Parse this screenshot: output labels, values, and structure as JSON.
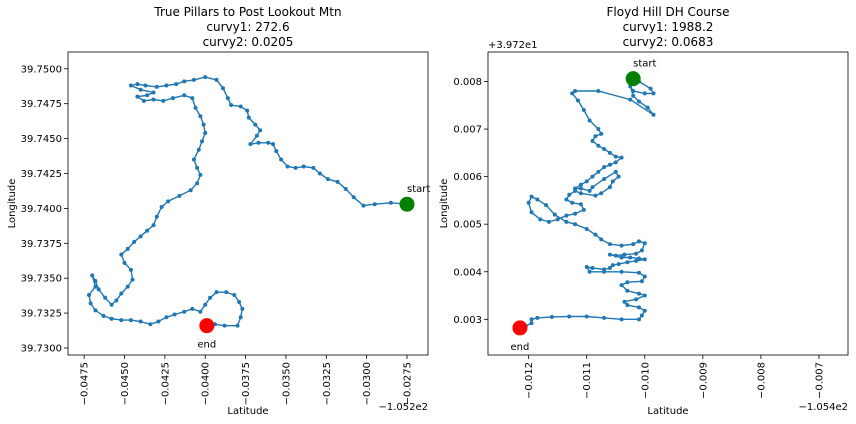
{
  "chart_data": [
    {
      "type": "scatter",
      "title": [
        "True Pillars to Post Lookout Mtn",
        "curvy1: 272.6",
        "curvy2: 0.0205"
      ],
      "xlabel": "Latitude",
      "ylabel": "Longitude",
      "x_offset_label": "−1.052e2",
      "y_offset_label": "",
      "xlim": [
        -0.0485,
        -0.0262
      ],
      "ylim": [
        39.7295,
        39.7512
      ],
      "xticks": [
        -0.0475,
        -0.045,
        -0.0425,
        -0.04,
        -0.0375,
        -0.035,
        -0.0325,
        -0.03,
        -0.0275
      ],
      "xtick_labels": [
        "−0.0475",
        "−0.0450",
        "−0.0425",
        "−0.0400",
        "−0.0375",
        "−0.0350",
        "−0.0325",
        "−0.0300",
        "−0.0275"
      ],
      "yticks": [
        39.73,
        39.7325,
        39.735,
        39.7375,
        39.74,
        39.7425,
        39.745,
        39.7475,
        39.75
      ],
      "ytick_labels": [
        "39.7300",
        "39.7325",
        "39.7350",
        "39.7375",
        "39.7400",
        "39.7425",
        "39.7450",
        "39.7475",
        "39.7500"
      ],
      "series_color": "#1f77b4",
      "start": {
        "x": -0.0275,
        "y": 39.7403,
        "label": "start",
        "color": "#008000"
      },
      "end": {
        "x": -0.0399,
        "y": 39.7316,
        "label": "end",
        "color": "#ff0000"
      },
      "points": [
        [
          -0.0275,
          39.7403
        ],
        [
          -0.0285,
          39.7404
        ],
        [
          -0.0295,
          39.7403
        ],
        [
          -0.0302,
          39.7402
        ],
        [
          -0.0308,
          39.7408
        ],
        [
          -0.0313,
          39.7414
        ],
        [
          -0.0318,
          39.7419
        ],
        [
          -0.0324,
          39.7421
        ],
        [
          -0.0329,
          39.7425
        ],
        [
          -0.0333,
          39.7429
        ],
        [
          -0.0339,
          39.743
        ],
        [
          -0.0344,
          39.7429
        ],
        [
          -0.0349,
          39.743
        ],
        [
          -0.0353,
          39.7435
        ],
        [
          -0.0356,
          39.7441
        ],
        [
          -0.0358,
          39.7446
        ],
        [
          -0.0361,
          39.7447
        ],
        [
          -0.0367,
          39.7447
        ],
        [
          -0.0372,
          39.7446
        ],
        [
          -0.0368,
          39.7452
        ],
        [
          -0.0366,
          39.7456
        ],
        [
          -0.0369,
          39.746
        ],
        [
          -0.0373,
          39.7465
        ],
        [
          -0.0374,
          39.747
        ],
        [
          -0.0378,
          39.7473
        ],
        [
          -0.0384,
          39.7474
        ],
        [
          -0.0386,
          39.7479
        ],
        [
          -0.0389,
          39.7486
        ],
        [
          -0.0393,
          39.7492
        ],
        [
          -0.04,
          39.7494
        ],
        [
          -0.0407,
          39.7492
        ],
        [
          -0.0413,
          39.7491
        ],
        [
          -0.0418,
          39.7489
        ],
        [
          -0.0424,
          39.7488
        ],
        [
          -0.043,
          39.7487
        ],
        [
          -0.0437,
          39.7488
        ],
        [
          -0.0442,
          39.7489
        ],
        [
          -0.0446,
          39.7488
        ],
        [
          -0.044,
          39.7485
        ],
        [
          -0.0432,
          39.7483
        ],
        [
          -0.0436,
          39.7481
        ],
        [
          -0.0442,
          39.748
        ],
        [
          -0.0438,
          39.7477
        ],
        [
          -0.0432,
          39.7478
        ],
        [
          -0.0426,
          39.7477
        ],
        [
          -0.042,
          39.7479
        ],
        [
          -0.0413,
          39.7481
        ],
        [
          -0.0408,
          39.7479
        ],
        [
          -0.0406,
          39.7472
        ],
        [
          -0.0403,
          39.7466
        ],
        [
          -0.0401,
          39.746
        ],
        [
          -0.04,
          39.7454
        ],
        [
          -0.0402,
          39.7448
        ],
        [
          -0.0404,
          39.7442
        ],
        [
          -0.0407,
          39.7435
        ],
        [
          -0.0405,
          39.7429
        ],
        [
          -0.0403,
          39.7424
        ],
        [
          -0.0405,
          39.7418
        ],
        [
          -0.0409,
          39.7413
        ],
        [
          -0.0416,
          39.7409
        ],
        [
          -0.0423,
          39.7405
        ],
        [
          -0.0427,
          39.7401
        ],
        [
          -0.043,
          39.7394
        ],
        [
          -0.0432,
          39.7388
        ],
        [
          -0.0436,
          39.7384
        ],
        [
          -0.044,
          39.738
        ],
        [
          -0.0444,
          39.7376
        ],
        [
          -0.0448,
          39.7371
        ],
        [
          -0.0452,
          39.7367
        ],
        [
          -0.045,
          39.7361
        ],
        [
          -0.0446,
          39.7356
        ],
        [
          -0.0445,
          39.7349
        ],
        [
          -0.0448,
          39.7344
        ],
        [
          -0.0452,
          39.7339
        ],
        [
          -0.0455,
          39.7334
        ],
        [
          -0.0458,
          39.7331
        ],
        [
          -0.0462,
          39.7336
        ],
        [
          -0.0466,
          39.7342
        ],
        [
          -0.0468,
          39.7348
        ],
        [
          -0.047,
          39.7352
        ],
        [
          -0.0468,
          39.7344
        ],
        [
          -0.0472,
          39.7338
        ],
        [
          -0.0471,
          39.7332
        ],
        [
          -0.0468,
          39.7327
        ],
        [
          -0.0463,
          39.7323
        ],
        [
          -0.0458,
          39.7321
        ],
        [
          -0.0452,
          39.732
        ],
        [
          -0.0446,
          39.732
        ],
        [
          -0.044,
          39.7319
        ],
        [
          -0.0434,
          39.7317
        ],
        [
          -0.0429,
          39.7319
        ],
        [
          -0.0424,
          39.7322
        ],
        [
          -0.0419,
          39.7324
        ],
        [
          -0.0413,
          39.7326
        ],
        [
          -0.0408,
          39.7328
        ],
        [
          -0.0403,
          39.7326
        ],
        [
          -0.04,
          39.7331
        ],
        [
          -0.0397,
          39.7336
        ],
        [
          -0.0393,
          39.734
        ],
        [
          -0.0387,
          39.734
        ],
        [
          -0.0382,
          39.7338
        ],
        [
          -0.0379,
          39.7333
        ],
        [
          -0.0377,
          39.7328
        ],
        [
          -0.0378,
          39.7322
        ],
        [
          -0.038,
          39.7316
        ],
        [
          -0.0388,
          39.7316
        ],
        [
          -0.0394,
          39.7317
        ],
        [
          -0.0399,
          39.7316
        ]
      ]
    },
    {
      "type": "scatter",
      "title": [
        "Floyd Hill DH Course",
        "curvy1: 1988.2",
        "curvy2: 0.0683"
      ],
      "xlabel": "Latitude",
      "ylabel": "Longitude",
      "x_offset_label": "−1.054e2",
      "y_offset_label": "+3.972e1",
      "xlim": [
        -0.0127,
        -0.0065
      ],
      "ylim": [
        0.00225,
        0.00862
      ],
      "xticks": [
        -0.012,
        -0.011,
        -0.01,
        -0.009,
        -0.008,
        -0.007
      ],
      "xtick_labels": [
        "−0.012",
        "−0.011",
        "−0.010",
        "−0.009",
        "−0.008",
        "−0.007"
      ],
      "yticks": [
        0.003,
        0.004,
        0.005,
        0.006,
        0.007,
        0.008
      ],
      "ytick_labels": [
        "0.003",
        "0.004",
        "0.005",
        "0.006",
        "0.007",
        "0.008"
      ],
      "series_color": "#1f77b4",
      "start": {
        "x": -0.0102,
        "y": 0.00806,
        "label": "start",
        "color": "#008000"
      },
      "end": {
        "x": -0.01215,
        "y": 0.00282,
        "label": "end",
        "color": "#ff0000"
      },
      "points": [
        [
          -0.0102,
          0.00806
        ],
        [
          -0.0101,
          0.008
        ],
        [
          -0.0099,
          0.00785
        ],
        [
          -0.00985,
          0.00775
        ],
        [
          -0.01,
          0.00775
        ],
        [
          -0.0102,
          0.0078
        ],
        [
          -0.01025,
          0.0079
        ],
        [
          -0.0102,
          0.0077
        ],
        [
          -0.0101,
          0.00758
        ],
        [
          -0.00995,
          0.00745
        ],
        [
          -0.00985,
          0.0073
        ],
        [
          -0.01025,
          0.00762
        ],
        [
          -0.0108,
          0.0078
        ],
        [
          -0.0112,
          0.0078
        ],
        [
          -0.01125,
          0.00775
        ],
        [
          -0.01115,
          0.0076
        ],
        [
          -0.01105,
          0.0074
        ],
        [
          -0.01095,
          0.00718
        ],
        [
          -0.0108,
          0.007
        ],
        [
          -0.01075,
          0.0069
        ],
        [
          -0.01085,
          0.00685
        ],
        [
          -0.0109,
          0.00675
        ],
        [
          -0.0108,
          0.00665
        ],
        [
          -0.0107,
          0.00658
        ],
        [
          -0.0106,
          0.0065
        ],
        [
          -0.0105,
          0.00642
        ],
        [
          -0.0104,
          0.0064
        ],
        [
          -0.0105,
          0.0063
        ],
        [
          -0.0106,
          0.00625
        ],
        [
          -0.0107,
          0.0062
        ],
        [
          -0.0108,
          0.0061
        ],
        [
          -0.0109,
          0.006
        ],
        [
          -0.011,
          0.0059
        ],
        [
          -0.0111,
          0.00583
        ],
        [
          -0.0112,
          0.00575
        ],
        [
          -0.0111,
          0.00575
        ],
        [
          -0.01095,
          0.0057
        ],
        [
          -0.0109,
          0.00578
        ],
        [
          -0.0107,
          0.00595
        ],
        [
          -0.0105,
          0.0061
        ],
        [
          -0.01045,
          0.006
        ],
        [
          -0.01055,
          0.0059
        ],
        [
          -0.0106,
          0.00578
        ],
        [
          -0.01075,
          0.00565
        ],
        [
          -0.01085,
          0.0056
        ],
        [
          -0.0111,
          0.00565
        ],
        [
          -0.0112,
          0.0057
        ],
        [
          -0.0113,
          0.00562
        ],
        [
          -0.01135,
          0.00552
        ],
        [
          -0.01125,
          0.00545
        ],
        [
          -0.0111,
          0.00542
        ],
        [
          -0.01105,
          0.0053
        ],
        [
          -0.0112,
          0.00522
        ],
        [
          -0.01135,
          0.00518
        ],
        [
          -0.0115,
          0.0051
        ],
        [
          -0.01165,
          0.00505
        ],
        [
          -0.0118,
          0.0051
        ],
        [
          -0.01195,
          0.00525
        ],
        [
          -0.012,
          0.00545
        ],
        [
          -0.01195,
          0.00558
        ],
        [
          -0.01185,
          0.00552
        ],
        [
          -0.0117,
          0.0054
        ],
        [
          -0.01155,
          0.0052
        ],
        [
          -0.01135,
          0.00505
        ],
        [
          -0.0112,
          0.005
        ],
        [
          -0.011,
          0.0049
        ],
        [
          -0.01085,
          0.00478
        ],
        [
          -0.01075,
          0.00468
        ],
        [
          -0.0106,
          0.00458
        ],
        [
          -0.0104,
          0.00455
        ],
        [
          -0.0102,
          0.00458
        ],
        [
          -0.0101,
          0.00464
        ],
        [
          -0.01,
          0.0046
        ],
        [
          -0.01005,
          0.00445
        ],
        [
          -0.01015,
          0.00438
        ],
        [
          -0.01035,
          0.00436
        ],
        [
          -0.0105,
          0.00434
        ],
        [
          -0.0106,
          0.00436
        ],
        [
          -0.0104,
          0.0043
        ],
        [
          -0.01025,
          0.0043
        ],
        [
          -0.0101,
          0.00428
        ],
        [
          -0.01,
          0.00426
        ],
        [
          -0.01015,
          0.00423
        ],
        [
          -0.0103,
          0.0042
        ],
        [
          -0.01045,
          0.00416
        ],
        [
          -0.01055,
          0.00414
        ],
        [
          -0.0106,
          0.00408
        ],
        [
          -0.0107,
          0.00405
        ],
        [
          -0.0109,
          0.00408
        ],
        [
          -0.011,
          0.0041
        ],
        [
          -0.01095,
          0.004
        ],
        [
          -0.0107,
          0.004
        ],
        [
          -0.0104,
          0.004
        ],
        [
          -0.0101,
          0.00398
        ],
        [
          -0.01,
          0.0039
        ],
        [
          -0.01005,
          0.0038
        ],
        [
          -0.0103,
          0.00378
        ],
        [
          -0.0104,
          0.00372
        ],
        [
          -0.0103,
          0.0036
        ],
        [
          -0.0101,
          0.00354
        ],
        [
          -0.01,
          0.0035
        ],
        [
          -0.01015,
          0.00342
        ],
        [
          -0.01035,
          0.00337
        ],
        [
          -0.0103,
          0.0033
        ],
        [
          -0.0101,
          0.00325
        ],
        [
          -0.01,
          0.00318
        ],
        [
          -0.01005,
          0.00308
        ],
        [
          -0.0101,
          0.003
        ],
        [
          -0.0104,
          0.003
        ],
        [
          -0.0107,
          0.00303
        ],
        [
          -0.011,
          0.00306
        ],
        [
          -0.0113,
          0.00306
        ],
        [
          -0.0116,
          0.00305
        ],
        [
          -0.01185,
          0.00303
        ],
        [
          -0.01195,
          0.003
        ],
        [
          -0.01195,
          0.00292
        ],
        [
          -0.01205,
          0.00286
        ],
        [
          -0.01215,
          0.00282
        ]
      ]
    }
  ]
}
